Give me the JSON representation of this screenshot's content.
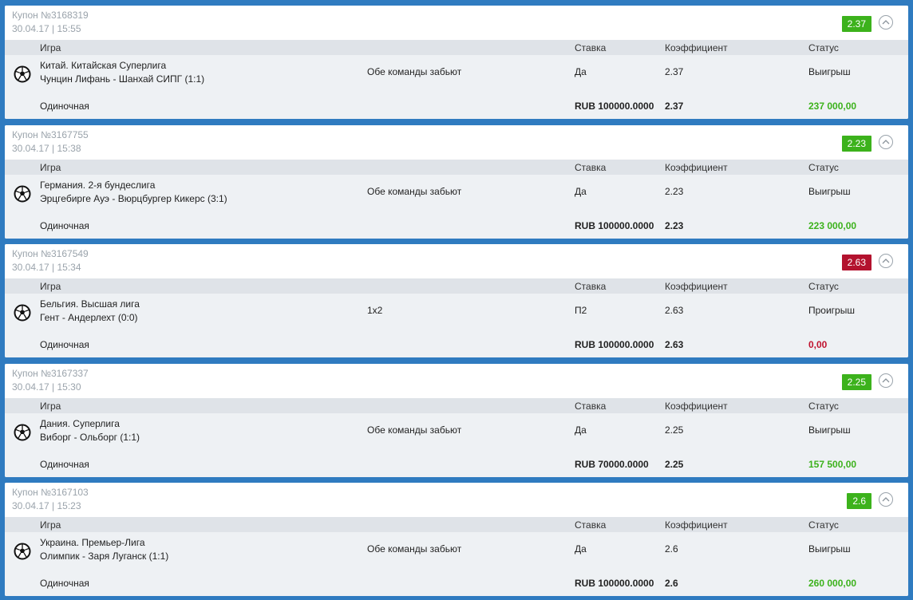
{
  "columns": {
    "game": "Игра",
    "stake": "Ставка",
    "coef": "Коэффициент",
    "status": "Статус"
  },
  "colors": {
    "win": "#3cb21c",
    "loss": "#b3122e",
    "background": "#2f7bc0"
  },
  "coupons": [
    {
      "number": "Купон №3168319",
      "datetime": "30.04.17 | 15:55",
      "coef_badge": "2.37",
      "result": "win",
      "league": "Китай. Китайская Суперлига",
      "match": "Чунцин Лифань - Шанхай СИПГ (1:1)",
      "market": "Обе команды забьют",
      "pick": "Да",
      "coef": "2.37",
      "status": "Выигрыш",
      "bet_type": "Одиночная",
      "stake": "RUB 100000.0000",
      "total_coef": "2.37",
      "payout": "237 000,00"
    },
    {
      "number": "Купон №3167755",
      "datetime": "30.04.17 | 15:38",
      "coef_badge": "2.23",
      "result": "win",
      "league": "Германия. 2-я бундеслига",
      "match": "Эрцгебирге Ауэ - Вюрцбургер Кикерс (3:1)",
      "market": "Обе команды забьют",
      "pick": "Да",
      "coef": "2.23",
      "status": "Выигрыш",
      "bet_type": "Одиночная",
      "stake": "RUB 100000.0000",
      "total_coef": "2.23",
      "payout": "223 000,00"
    },
    {
      "number": "Купон №3167549",
      "datetime": "30.04.17 | 15:34",
      "coef_badge": "2.63",
      "result": "loss",
      "league": "Бельгия. Высшая лига",
      "match": "Гент - Андерлехт (0:0)",
      "market": "1x2",
      "pick": "П2",
      "coef": "2.63",
      "status": "Проигрыш",
      "bet_type": "Одиночная",
      "stake": "RUB 100000.0000",
      "total_coef": "2.63",
      "payout": "0,00"
    },
    {
      "number": "Купон №3167337",
      "datetime": "30.04.17 | 15:30",
      "coef_badge": "2.25",
      "result": "win",
      "league": "Дания. Суперлига",
      "match": "Виборг - Ольборг (1:1)",
      "market": "Обе команды забьют",
      "pick": "Да",
      "coef": "2.25",
      "status": "Выигрыш",
      "bet_type": "Одиночная",
      "stake": "RUB 70000.0000",
      "total_coef": "2.25",
      "payout": "157 500,00"
    },
    {
      "number": "Купон №3167103",
      "datetime": "30.04.17 | 15:23",
      "coef_badge": "2.6",
      "result": "win",
      "league": "Украина. Премьер-Лига",
      "match": "Олимпик - Заря Луганск (1:1)",
      "market": "Обе команды забьют",
      "pick": "Да",
      "coef": "2.6",
      "status": "Выигрыш",
      "bet_type": "Одиночная",
      "stake": "RUB 100000.0000",
      "total_coef": "2.6",
      "payout": "260 000,00"
    }
  ]
}
